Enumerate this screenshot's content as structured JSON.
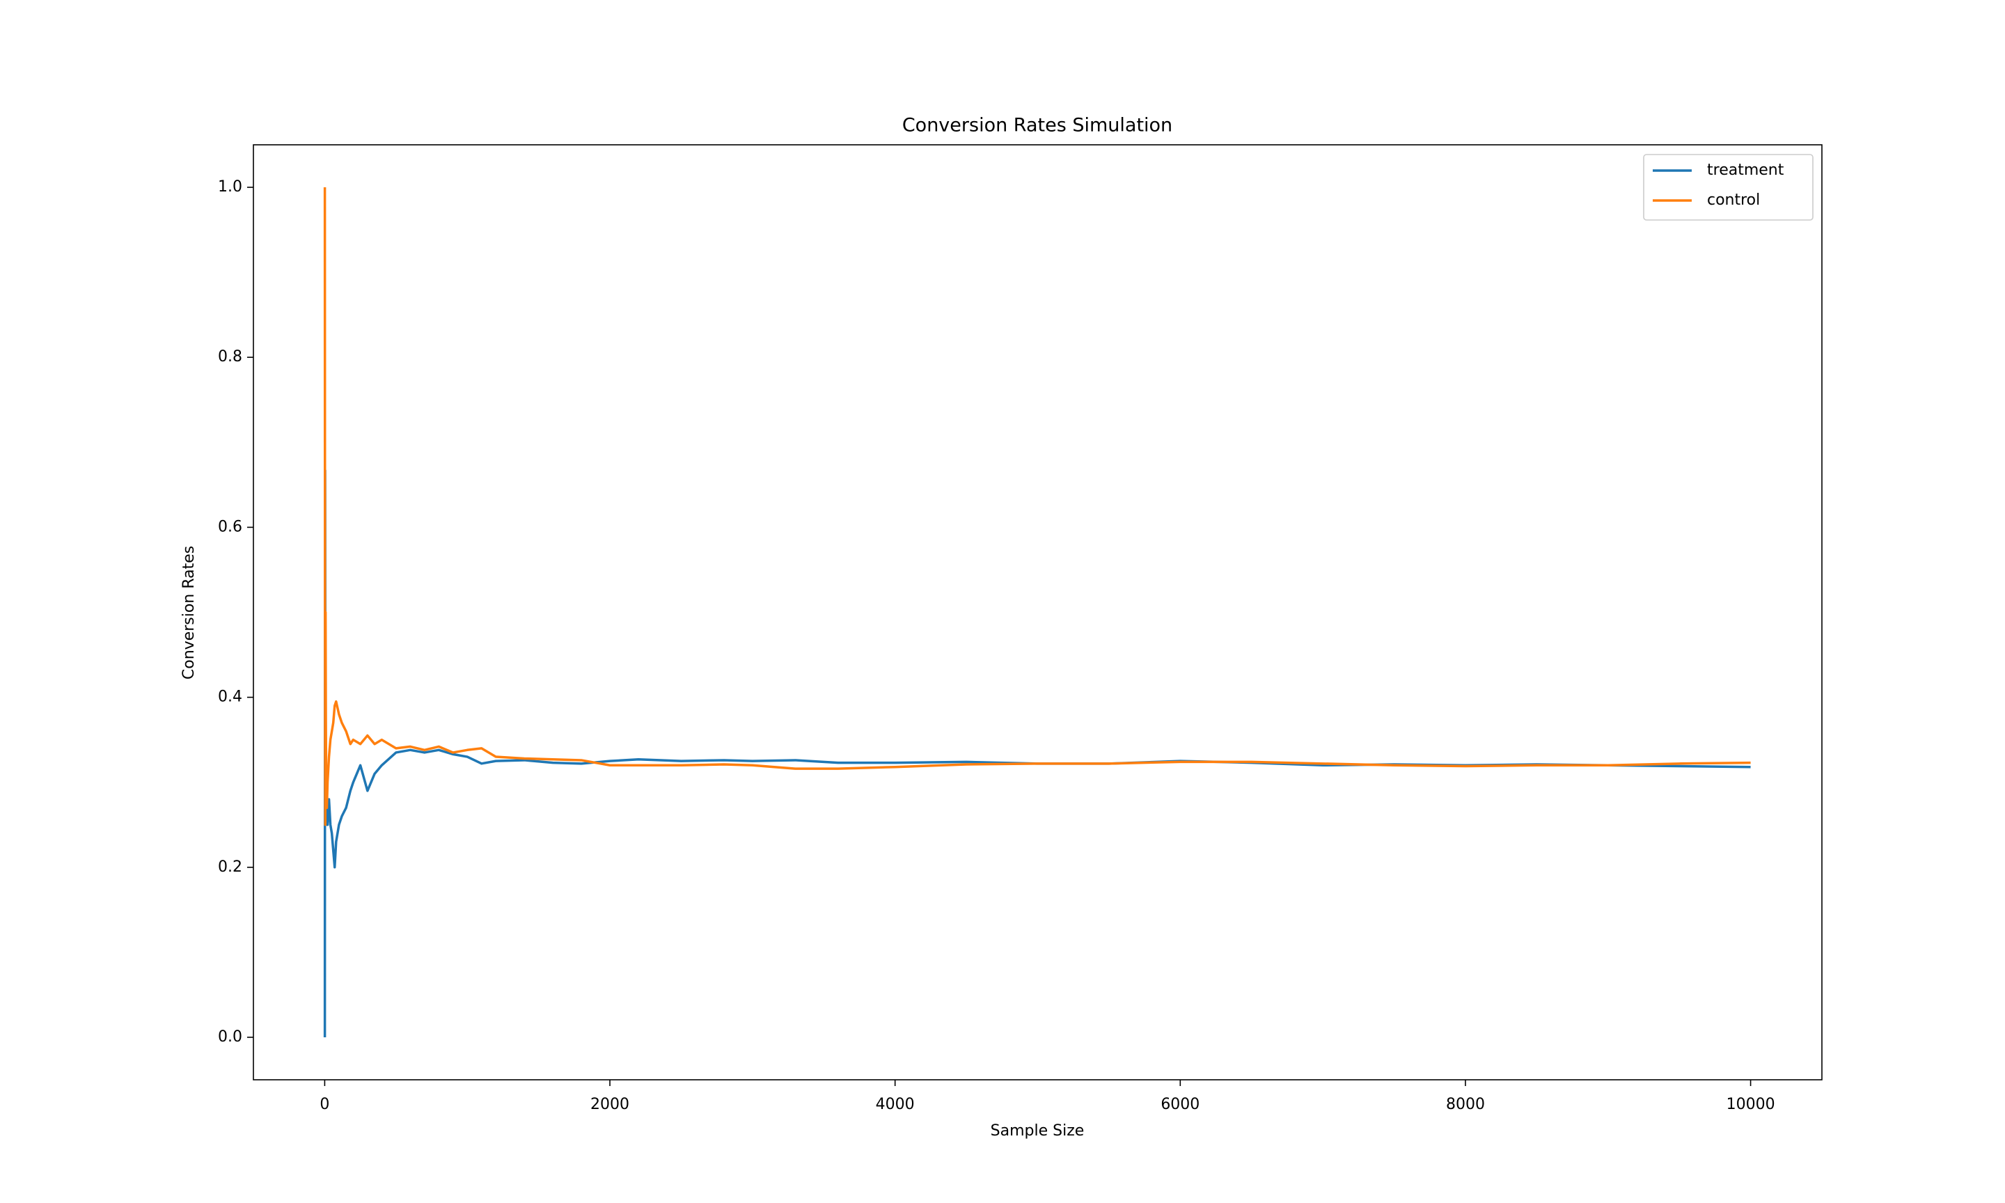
{
  "chart_data": {
    "type": "line",
    "title": "Conversion Rates Simulation",
    "x_label": "Sample Size",
    "y_label": "Conversion Rates",
    "x": [
      1,
      2,
      3,
      4,
      5,
      6,
      8,
      10,
      15,
      20,
      30,
      40,
      50,
      60,
      70,
      80,
      100,
      120,
      150,
      180,
      200,
      250,
      300,
      350,
      400,
      500,
      600,
      700,
      800,
      900,
      1000,
      1100,
      1200,
      1400,
      1600,
      1800,
      2000,
      2200,
      2500,
      2800,
      3000,
      3300,
      3600,
      4000,
      4500,
      5000,
      5500,
      6000,
      6500,
      7000,
      7500,
      8000,
      8500,
      9000,
      9500,
      10000
    ],
    "series": [
      {
        "name": "treatment",
        "color": "#1f77b4",
        "values": [
          0.0,
          0.5,
          0.667,
          0.5,
          0.4,
          0.333,
          0.25,
          0.3,
          0.27,
          0.25,
          0.28,
          0.25,
          0.24,
          0.22,
          0.2,
          0.23,
          0.25,
          0.26,
          0.27,
          0.29,
          0.3,
          0.32,
          0.29,
          0.31,
          0.32,
          0.335,
          0.338,
          0.335,
          0.338,
          0.333,
          0.33,
          0.322,
          0.325,
          0.326,
          0.323,
          0.322,
          0.325,
          0.327,
          0.325,
          0.326,
          0.325,
          0.326,
          0.323,
          0.323,
          0.324,
          0.322,
          0.322,
          0.325,
          0.323,
          0.32,
          0.321,
          0.32,
          0.321,
          0.32,
          0.319,
          0.318
        ]
      },
      {
        "name": "control",
        "color": "#ff7f0e",
        "values": [
          1.0,
          0.5,
          0.333,
          0.25,
          0.4,
          0.5,
          0.375,
          0.3,
          0.27,
          0.3,
          0.33,
          0.35,
          0.36,
          0.37,
          0.39,
          0.395,
          0.38,
          0.37,
          0.36,
          0.345,
          0.35,
          0.345,
          0.355,
          0.345,
          0.35,
          0.34,
          0.342,
          0.338,
          0.342,
          0.335,
          0.338,
          0.34,
          0.33,
          0.328,
          0.327,
          0.326,
          0.32,
          0.32,
          0.32,
          0.321,
          0.32,
          0.316,
          0.316,
          0.318,
          0.321,
          0.322,
          0.322,
          0.324,
          0.324,
          0.322,
          0.32,
          0.319,
          0.32,
          0.32,
          0.322,
          0.323
        ]
      }
    ],
    "xlim": [
      -500,
      10500
    ],
    "ylim": [
      -0.05,
      1.05
    ],
    "xticks": [
      0,
      2000,
      4000,
      6000,
      8000,
      10000
    ],
    "yticks": [
      {
        "value": 0,
        "label": "0.0"
      },
      0.2,
      0.4,
      0.6,
      0.8,
      {
        "value": 1,
        "label": "1.0"
      }
    ],
    "legend": "upper right"
  }
}
